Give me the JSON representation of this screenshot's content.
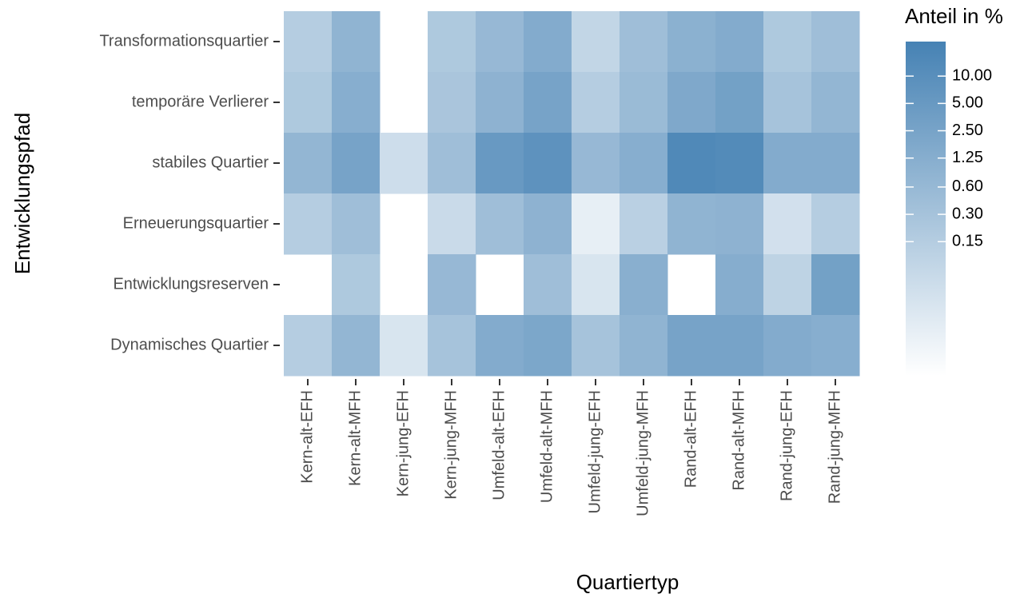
{
  "chart_data": {
    "type": "heatmap",
    "x_label": "Quartiertyp",
    "y_label": "Entwicklungspfad",
    "legend_title": "Anteil in %",
    "x_categories": [
      "Kern-alt-EFH",
      "Kern-alt-MFH",
      "Kern-jung-EFH",
      "Kern-jung-MFH",
      "Umfeld-alt-EFH",
      "Umfeld-alt-MFH",
      "Umfeld-jung-EFH",
      "Umfeld-jung-MFH",
      "Rand-alt-EFH",
      "Rand-alt-MFH",
      "Rand-jung-EFH",
      "Rand-jung-MFH"
    ],
    "y_categories": [
      "Transformationsquartier",
      "temporäre Verlierer",
      "stabiles Quartier",
      "Erneuerungsquartier",
      "Entwicklungsreserven",
      "Dynamisches Quartier"
    ],
    "values": [
      [
        0.15,
        0.8,
        null,
        0.2,
        0.6,
        1.5,
        0.08,
        0.4,
        1.0,
        1.5,
        0.2,
        0.4
      ],
      [
        0.2,
        1.2,
        null,
        0.25,
        0.9,
        2.5,
        0.15,
        0.5,
        1.8,
        3,
        0.3,
        0.7
      ],
      [
        0.7,
        2.5,
        0.05,
        0.4,
        5,
        8,
        0.6,
        1.2,
        15,
        13,
        1.5,
        1.5
      ],
      [
        0.15,
        0.4,
        null,
        0.06,
        0.4,
        0.9,
        0.015,
        0.12,
        0.8,
        0.9,
        0.04,
        0.15
      ],
      [
        null,
        0.2,
        null,
        0.6,
        null,
        0.4,
        0.03,
        1.1,
        null,
        1.3,
        0.1,
        3
      ],
      [
        0.15,
        0.7,
        0.03,
        0.3,
        1.5,
        2,
        0.3,
        0.8,
        2.5,
        2.5,
        1.5,
        1.2
      ]
    ],
    "color_scale": "log",
    "clim": [
      0.005,
      24
    ],
    "colors": [
      "#ffffff",
      "#4682b4"
    ],
    "cticks": [
      {
        "value": 10,
        "label": "10.00"
      },
      {
        "value": 5,
        "label": "5.00"
      },
      {
        "value": 2.5,
        "label": "2.50"
      },
      1.25,
      {
        "value": 0.6,
        "label": "0.60"
      },
      {
        "value": 0.3,
        "label": "0.30"
      },
      0.15
    ]
  }
}
